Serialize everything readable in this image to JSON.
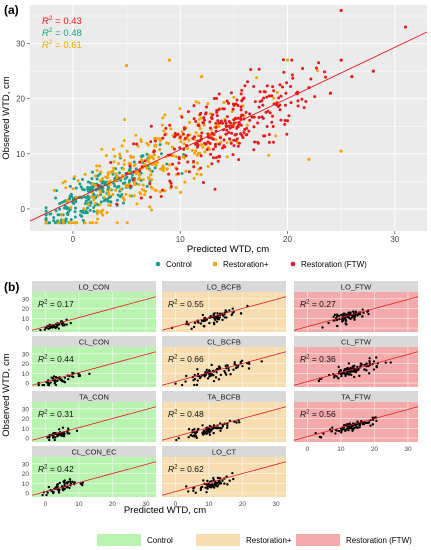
{
  "figure": {
    "panel_a_label": "(a)",
    "panel_b_label": "(b)",
    "colors": {
      "control": "#1a9e8c",
      "restoration_plus": "#f2a500",
      "restoration_ftw": "#e8191f",
      "panel_bg": "#ebebeb",
      "grid": "#ffffff",
      "line": "#e8191f",
      "bg_control": "#b9f3b0",
      "bg_restoration_plus": "#f7ddb0",
      "bg_restoration_ftw": "#f4aaaa"
    }
  },
  "chart_data": [
    {
      "type": "scatter",
      "panel": "(a)",
      "xlabel": "Predicted WTD, cm",
      "ylabel": "Observed WTD, cm",
      "xlim": [
        -4,
        33
      ],
      "ylim": [
        -4,
        37
      ],
      "xticks": [
        0,
        10,
        20,
        30
      ],
      "yticks": [
        0,
        10,
        20,
        30
      ],
      "grid": true,
      "r2_labels": [
        {
          "prefix": "R",
          "sup": "2",
          "text": " = 0.43",
          "color": "#e8191f"
        },
        {
          "prefix": "R",
          "sup": "2",
          "text": " = 0.48",
          "color": "#1a9e8c"
        },
        {
          "prefix": "R",
          "sup": "2",
          "text": " = 0.61",
          "color": "#f2a500"
        }
      ],
      "fit_line": {
        "x": [
          -4,
          33
        ],
        "y": [
          -2.2,
          32.1
        ],
        "color": "#e8191f"
      },
      "legend": {
        "position": "bottom",
        "items": [
          {
            "label": "Control",
            "color": "#1a9e8c"
          },
          {
            "label": "Restoration+",
            "color": "#f2a500"
          },
          {
            "label": "Restoration (FTW)",
            "color": "#e8191f"
          }
        ]
      },
      "series": [
        {
          "name": "Control",
          "color": "#1a9e8c",
          "cx": 2.0,
          "cy": 2.5,
          "sx": 3.0,
          "sy": 3.5,
          "n": 260
        },
        {
          "name": "Restoration+",
          "color": "#f2a500",
          "cx": 7.0,
          "cy": 7.5,
          "sx": 5.0,
          "sy": 6.0,
          "n": 320
        },
        {
          "name": "Restoration (FTW)",
          "color": "#e8191f",
          "cx": 14.0,
          "cy": 14.5,
          "sx": 4.0,
          "sy": 6.5,
          "n": 300
        },
        {
          "name": "Restoration (FTW)",
          "color": "#e8191f",
          "outliers": [
            [
              25,
              36
            ],
            [
              31,
              33
            ],
            [
              25,
              27
            ],
            [
              28,
              25
            ],
            [
              26,
              24
            ],
            [
              20,
              16
            ],
            [
              22,
              22
            ],
            [
              24,
              21
            ]
          ]
        },
        {
          "name": "Restoration+",
          "color": "#f2a500",
          "outliers": [
            [
              25,
              10.5
            ],
            [
              22,
              9
            ],
            [
              5,
              26
            ],
            [
              9,
              27
            ],
            [
              12,
              24
            ],
            [
              20,
              27
            ]
          ]
        }
      ]
    },
    {
      "type": "scatter",
      "panel": "(b)",
      "xlabel": "Predicted WTD, cm",
      "ylabel": "Observed WTD, cm",
      "xlim": [
        -4,
        33
      ],
      "ylim": [
        -4,
        37
      ],
      "xticks": [
        0,
        10,
        20,
        30
      ],
      "yticks": [
        0,
        10,
        20,
        30
      ],
      "point_color": "#000000",
      "line_color": "#e8191f",
      "legend": {
        "position": "bottom",
        "items": [
          {
            "label": "Control",
            "color": "#b9f3b0"
          },
          {
            "label": "Restoration+",
            "color": "#f7ddb0"
          },
          {
            "label": "Restoration (FTW)",
            "color": "#f4aaaa"
          }
        ]
      },
      "facets": [
        {
          "title": "LO_CON",
          "r2": " = 0.17",
          "group": "control",
          "cx": 3.0,
          "cy": 2.5,
          "sx": 2.0,
          "sy": 2.5,
          "n": 45
        },
        {
          "title": "LO_BCFB",
          "r2": " = 0.55",
          "group": "restoration_plus",
          "cx": 11.0,
          "cy": 10.0,
          "sx": 4.0,
          "sy": 4.5,
          "n": 70
        },
        {
          "title": "LO_FTW",
          "r2": " = 0.27",
          "group": "restoration_ftw",
          "cx": 13.0,
          "cy": 12.5,
          "sx": 3.0,
          "sy": 4.0,
          "n": 75
        },
        {
          "title": "CL_CON",
          "r2": " = 0.44",
          "group": "control",
          "cx": 4.0,
          "cy": 3.5,
          "sx": 3.5,
          "sy": 3.5,
          "n": 50
        },
        {
          "title": "CL_BCFB",
          "r2": " = 0.66",
          "group": "restoration_plus",
          "cx": 12.0,
          "cy": 11.0,
          "sx": 5.0,
          "sy": 6.0,
          "n": 80
        },
        {
          "title": "CL_FTW",
          "r2": " = 0.36",
          "group": "restoration_ftw",
          "cx": 14.0,
          "cy": 13.5,
          "sx": 4.0,
          "sy": 5.0,
          "n": 90
        },
        {
          "title": "TA_CON",
          "r2": " = 0.31",
          "group": "control",
          "cx": 3.5,
          "cy": 3.0,
          "sx": 2.0,
          "sy": 3.5,
          "n": 50
        },
        {
          "title": "TA_BCFB",
          "r2": " = 0.48",
          "group": "restoration_plus",
          "cx": 10.0,
          "cy": 8.5,
          "sx": 4.0,
          "sy": 4.0,
          "n": 75
        },
        {
          "title": "TA_FTW",
          "r2": " = 0.56",
          "group": "restoration_ftw",
          "cx": 13.0,
          "cy": 12.0,
          "sx": 3.5,
          "sy": 3.5,
          "n": 85
        },
        {
          "title": "CL_CON_EC",
          "r2": " = 0.42",
          "group": "control",
          "cx": 4.0,
          "cy": 5.0,
          "sx": 2.5,
          "sy": 5.0,
          "n": 55
        },
        {
          "title": "LO_CT",
          "r2": " = 0.62",
          "group": "restoration_plus",
          "cx": 11.0,
          "cy": 9.0,
          "sx": 3.0,
          "sy": 5.0,
          "n": 60
        }
      ]
    }
  ]
}
